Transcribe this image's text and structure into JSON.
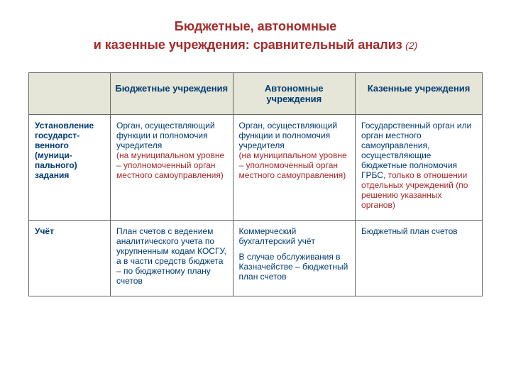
{
  "colors": {
    "title": "#a52a2a",
    "header_bg": "#e6e6d8",
    "header_text": "#003b73",
    "cell_text": "#003b73",
    "cell_alt_text": "#a52a2a",
    "border": "#666666"
  },
  "fonts": {
    "title_size": 18,
    "suffix_size": 14,
    "header_size": 13,
    "cell_size": 12
  },
  "layout": {
    "col_widths_pct": [
      18,
      27,
      27,
      28
    ]
  },
  "title": {
    "line1": "Бюджетные, автономные",
    "line2": "и казенные учреждения: сравнительный анализ",
    "suffix": "(2)"
  },
  "headers": {
    "c0": "",
    "c1": "Бюджетные учреждения",
    "c2": "Автономные учреждения",
    "c3": "Казенные учреждения"
  },
  "rows": [
    {
      "label": "Установление государст-венного (муници-пального) задания",
      "c1_main": "Орган, осуществляющий функции и полномочия учредителя",
      "c1_alt": "(на муниципальном уровне – уполномоченный орган местного самоуправления)",
      "c2_main": "Орган, осуществляющий функции и полномочия учредителя",
      "c2_alt": "(на муниципальном уровне – уполномоченный орган местного самоуправления)",
      "c3_main": "Государственный орган или орган местного самоуправления, осуществляющие бюджетные полномочия ГРБС, ",
      "c3_alt": "только в отношении отдельных учреждений (по решению указанных органов)"
    },
    {
      "label": "Учёт",
      "c1_main": "План счетов с ведением аналитического учета по укрупненным кодам КОСГУ, а в части средств бюджета – по бюджетному плану счетов",
      "c1_alt": "",
      "c2_main": "Коммерческий бухгалтерский учёт",
      "c2_extra": "В случае обслуживания в Казначействе – бюджетный план счетов",
      "c2_alt": "",
      "c3_main": "Бюджетный план счетов",
      "c3_alt": ""
    }
  ]
}
